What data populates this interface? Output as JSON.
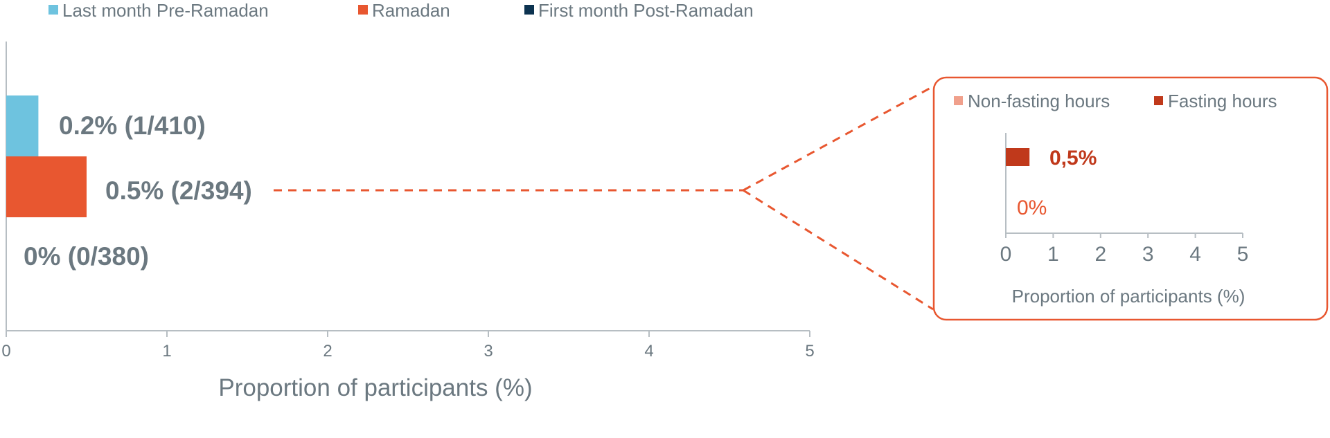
{
  "chart_data": [
    {
      "type": "bar",
      "orientation": "horizontal",
      "series": [
        {
          "name": "Last month Pre-Ramadan",
          "value": 0.2,
          "label": "0.2% (1/410)",
          "color": "#6ec3df"
        },
        {
          "name": "Ramadan",
          "value": 0.5,
          "label": "0.5% (2/394)",
          "color": "#e85730"
        },
        {
          "name": "First month Post-Ramadan",
          "value": 0,
          "label": "0% (0/380)",
          "color": "#0c3350"
        }
      ],
      "xlabel": "Proportion of participants (%)",
      "xlim": [
        0,
        5
      ],
      "xticks": [
        "0",
        "1",
        "2",
        "3",
        "4",
        "5"
      ],
      "grid": false,
      "legend": "top",
      "label_color": "#6b7880"
    },
    {
      "type": "bar",
      "orientation": "horizontal",
      "inset": true,
      "series": [
        {
          "name": "Fasting hours",
          "value": 0.5,
          "label": "0,5%",
          "color": "#c0391b"
        },
        {
          "name": "Non-fasting hours",
          "value": 0,
          "label": "0%",
          "color": "#f0a08c"
        }
      ],
      "legend_order": [
        "Non-fasting hours",
        "Fasting hours"
      ],
      "xlabel": "Proportion of participants (%)",
      "xlim": [
        0,
        5
      ],
      "xticks": [
        "0",
        "1",
        "2",
        "3",
        "4",
        "5"
      ],
      "grid": false,
      "legend": "top",
      "border_color": "#e85730"
    }
  ]
}
